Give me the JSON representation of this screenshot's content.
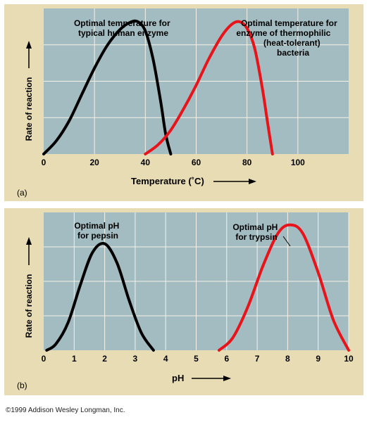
{
  "copyright": "©1999 Addison Wesley Longman, Inc.",
  "colors": {
    "panel_bg": "#e8dcb4",
    "plot_bg": "#a3bcc2",
    "grid": "#f4f1e6",
    "human_curve": "#000000",
    "bacteria_curve": "#e8141a"
  },
  "chart_data": [
    {
      "type": "line",
      "panel_label": "(a)",
      "xlabel": "Temperature (˚C)",
      "ylabel": "Rate of reaction",
      "xlim": [
        0,
        120
      ],
      "ylim": [
        0,
        1.1
      ],
      "x_ticks": [
        0,
        20,
        40,
        60,
        80,
        100
      ],
      "grid": true,
      "series": [
        {
          "name": "Optimal temperature for typical human enzyme",
          "x": [
            0,
            5,
            10,
            15,
            20,
            25,
            30,
            34,
            37,
            40,
            43,
            46,
            48,
            50
          ],
          "y": [
            0,
            0.1,
            0.25,
            0.45,
            0.65,
            0.82,
            0.94,
            0.995,
            1.0,
            0.93,
            0.72,
            0.4,
            0.15,
            0
          ]
        },
        {
          "name": "Optimal temperature for enzyme of thermophilic (heat-tolerant) bacteria",
          "x": [
            40,
            45,
            50,
            55,
            60,
            65,
            70,
            74,
            77,
            80,
            83,
            86,
            88,
            90
          ],
          "y": [
            0,
            0.07,
            0.18,
            0.34,
            0.52,
            0.72,
            0.89,
            0.98,
            1.0,
            0.95,
            0.8,
            0.5,
            0.25,
            0
          ]
        }
      ],
      "annotations": [
        {
          "lines": [
            "Optimal temperature for",
            "typical human enzyme"
          ]
        },
        {
          "lines": [
            "Optimal temperature for",
            "enzyme of thermophilic",
            "(heat-tolerant)",
            "bacteria"
          ]
        }
      ]
    },
    {
      "type": "line",
      "panel_label": "(b)",
      "xlabel": "pH",
      "ylabel": "Rate of reaction",
      "xlim": [
        0,
        10
      ],
      "ylim": [
        0,
        1.1
      ],
      "x_ticks": [
        0,
        1,
        2,
        3,
        4,
        5,
        6,
        7,
        8,
        9,
        10
      ],
      "grid": true,
      "series": [
        {
          "name": "Optimal pH for pepsin",
          "x": [
            0.1,
            0.4,
            0.8,
            1.2,
            1.6,
            2.0,
            2.4,
            2.8,
            3.2,
            3.6
          ],
          "y": [
            0,
            0.05,
            0.22,
            0.52,
            0.78,
            0.85,
            0.7,
            0.4,
            0.14,
            0
          ]
        },
        {
          "name": "Optimal pH for trypsin",
          "x": [
            5.75,
            6.2,
            6.7,
            7.2,
            7.7,
            8.1,
            8.5,
            9.0,
            9.5,
            10.0
          ],
          "y": [
            0,
            0.1,
            0.35,
            0.68,
            0.94,
            1.0,
            0.93,
            0.62,
            0.24,
            0
          ]
        }
      ],
      "annotations": [
        {
          "lines": [
            "Optimal pH",
            "for pepsin"
          ]
        },
        {
          "lines": [
            "Optimal pH",
            "for trypsin"
          ]
        }
      ]
    }
  ]
}
